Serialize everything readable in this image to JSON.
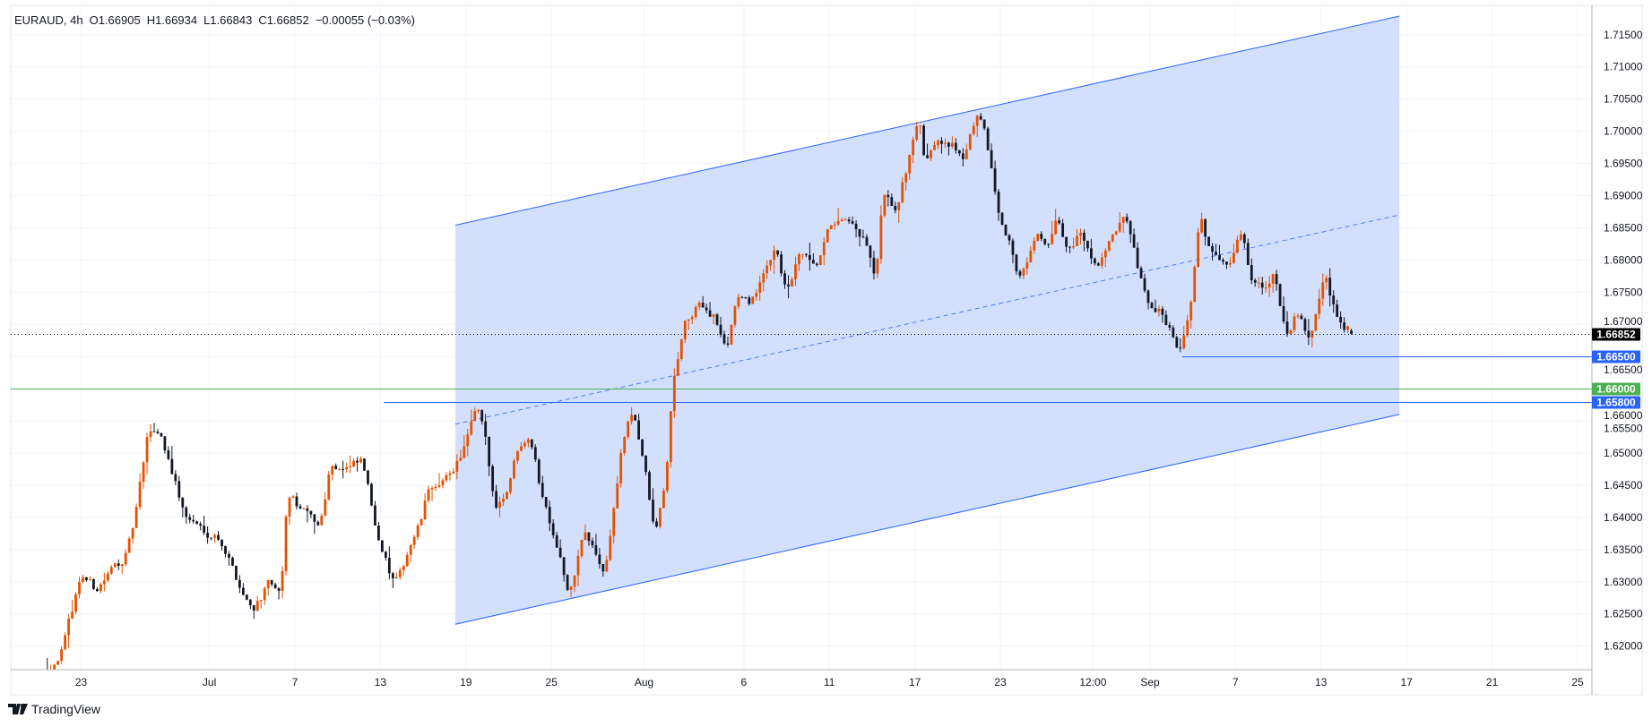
{
  "header": {
    "symbol": "EURAUD, 4h",
    "open": "O1.66905",
    "high": "H1.66934",
    "low": "L1.66843",
    "close": "C1.66852",
    "change": "−0.00055 (−0.03%)"
  },
  "logo": {
    "text": "TradingView"
  },
  "colors": {
    "up": "#e65100",
    "down": "#131722",
    "channel_line": "#2962ff",
    "channel_fill": "#d3e0fd",
    "blue_level": "#2962ff",
    "green_level": "#4caf50",
    "last_price": "#000000",
    "grid": "#f0f3fa"
  },
  "chart_data": {
    "type": "candlestick",
    "symbol": "EURAUD",
    "interval": "4h",
    "last_bar": {
      "open": 1.66905,
      "high": 1.66934,
      "low": 1.66843,
      "close": 1.66852,
      "change": -0.00055,
      "change_pct": -0.03
    },
    "ylim": [
      1.6155,
      1.7195
    ],
    "grid": true,
    "y_ticks": [
      "1.71500",
      "1.71000",
      "1.70500",
      "1.70000",
      "1.69500",
      "1.69000",
      "1.68500",
      "1.68000",
      "1.67500",
      "1.67000",
      "1.66500",
      "1.66000",
      "1.65500",
      "1.65000",
      "1.64500",
      "1.64000",
      "1.63500",
      "1.63000",
      "1.62500",
      "1.62000"
    ],
    "x_ticks": [
      {
        "label": "23",
        "date": "Jun 23 00:00"
      },
      {
        "label": "Jul",
        "date": "Jul 3 00:00"
      },
      {
        "label": "7",
        "date": "Jul 7 00:00"
      },
      {
        "label": "13",
        "date": "Jul 13 00:00"
      },
      {
        "label": "19",
        "date": "Jul 19 00:00"
      },
      {
        "label": "25",
        "date": "Jul 25 00:00"
      },
      {
        "label": "Aug",
        "date": "Jul 31 08:00"
      },
      {
        "label": "6",
        "date": "Aug 7 00:00"
      },
      {
        "label": "11",
        "date": "Aug 11 00:00"
      },
      {
        "label": "17",
        "date": "Aug 17 00:00"
      },
      {
        "label": "23",
        "date": "Aug 23 00:00"
      },
      {
        "label": "12:00",
        "date": "Aug 29 08:00"
      },
      {
        "label": "Sep",
        "date": "Sep 1 00:00"
      },
      {
        "label": "7",
        "date": "Sep 7 00:00"
      },
      {
        "label": "13",
        "date": "Sep 13 00:00"
      },
      {
        "label": "17",
        "date": "Sep 17 00:00"
      },
      {
        "label": "21",
        "date": "Sep 21 00:00"
      },
      {
        "label": "25",
        "date": "Sep 25 00:00"
      }
    ],
    "price_path": [
      [
        "Jun 21 10:00",
        1.6164
      ],
      [
        "Jun 22 04:00",
        1.6198
      ],
      [
        "Jun 23 00:00",
        1.6313
      ],
      [
        "Jun 23 16:00",
        1.6288
      ],
      [
        "Jun 27 04:00",
        1.6346
      ],
      [
        "Jun 27 12:00",
        1.6395
      ],
      [
        "Jun 28 04:00",
        1.6534
      ],
      [
        "Jun 28 16:00",
        1.6534
      ],
      [
        "Jun 29 04:00",
        1.6485
      ],
      [
        "Jun 29 20:00",
        1.6403
      ],
      [
        "Jun 30 12:00",
        1.6386
      ],
      [
        "Jul 3 12:00",
        1.637
      ],
      [
        "Jul 4 12:00",
        1.6288
      ],
      [
        "Jul 5 00:00",
        1.6259
      ],
      [
        "Jul 5 20:00",
        1.6297
      ],
      [
        "Jul 6 08:00",
        1.6272
      ],
      [
        "Jul 6 16:00",
        1.6436
      ],
      [
        "Jul 7 12:00",
        1.6403
      ],
      [
        "Jul 10 04:00",
        1.6386
      ],
      [
        "Jul 10 16:00",
        1.6485
      ],
      [
        "Jul 11 12:00",
        1.6476
      ],
      [
        "Jul 12 04:00",
        1.6485
      ],
      [
        "Jul 12 16:00",
        1.6403
      ],
      [
        "Jul 13 12:00",
        1.6305
      ],
      [
        "Jul 13 20:00",
        1.6297
      ],
      [
        "Jul 14 08:00",
        1.6354
      ],
      [
        "Jul 14 20:00",
        1.6386
      ],
      [
        "Jul 17 08:00",
        1.6452
      ],
      [
        "Jul 17 20:00",
        1.6444
      ],
      [
        "Jul 18 20:00",
        1.6501
      ],
      [
        "Jul 19 12:00",
        1.6566
      ],
      [
        "Jul 19 20:00",
        1.6534
      ],
      [
        "Jul 20 08:00",
        1.6419
      ],
      [
        "Jul 20 20:00",
        1.6436
      ],
      [
        "Jul 21 12:00",
        1.6517
      ],
      [
        "Jul 24 00:00",
        1.6534
      ],
      [
        "Jul 24 12:00",
        1.6444
      ],
      [
        "Jul 25 08:00",
        1.6354
      ],
      [
        "Jul 25 20:00",
        1.6272
      ],
      [
        "Jul 26 12:00",
        1.6378
      ],
      [
        "Jul 27 12:00",
        1.6313
      ],
      [
        "Jul 28 08:00",
        1.6517
      ],
      [
        "Jul 28 20:00",
        1.6566
      ],
      [
        "Jul 31 08:00",
        1.6485
      ],
      [
        "Jul 31 20:00",
        1.637
      ],
      [
        "Aug 1 08:00",
        1.6452
      ],
      [
        "Aug 1 16:00",
        1.6599
      ],
      [
        "Aug 2 04:00",
        1.6697
      ],
      [
        "Aug 3 00:00",
        1.673
      ],
      [
        "Aug 3 16:00",
        1.6713
      ],
      [
        "Aug 4 04:00",
        1.6656
      ],
      [
        "Aug 4 16:00",
        1.6746
      ],
      [
        "Aug 7 04:00",
        1.673
      ],
      [
        "Aug 7 20:00",
        1.6763
      ],
      [
        "Aug 8 12:00",
        1.6828
      ],
      [
        "Aug 9 00:00",
        1.6746
      ],
      [
        "Aug 9 16:00",
        1.6812
      ],
      [
        "Aug 10 08:00",
        1.6779
      ],
      [
        "Aug 11 04:00",
        1.6861
      ],
      [
        "Aug 11 20:00",
        1.6852
      ],
      [
        "Aug 14 16:00",
        1.6828
      ],
      [
        "Aug 15 04:00",
        1.6763
      ],
      [
        "Aug 15 12:00",
        1.6893
      ],
      [
        "Aug 16 04:00",
        1.6877
      ],
      [
        "Aug 16 12:00",
        1.6926
      ],
      [
        "Aug 17 04:00",
        1.7024
      ],
      [
        "Aug 17 12:00",
        1.6942
      ],
      [
        "Aug 18 00:00",
        1.6991
      ],
      [
        "Aug 18 12:00",
        1.6991
      ],
      [
        "Aug 21 08:00",
        1.6959
      ],
      [
        "Aug 21 20:00",
        1.7024
      ],
      [
        "Aug 22 08:00",
        1.6991
      ],
      [
        "Aug 22 20:00",
        1.6885
      ],
      [
        "Aug 23 08:00",
        1.6844
      ],
      [
        "Aug 23 20:00",
        1.6779
      ],
      [
        "Aug 24 08:00",
        1.6795
      ],
      [
        "Aug 24 16:00",
        1.6844
      ],
      [
        "Aug 25 04:00",
        1.6812
      ],
      [
        "Aug 25 16:00",
        1.6861
      ],
      [
        "Aug 28 04:00",
        1.6812
      ],
      [
        "Aug 28 16:00",
        1.6844
      ],
      [
        "Aug 29 12:00",
        1.6795
      ],
      [
        "Aug 30 04:00",
        1.6828
      ],
      [
        "Aug 30 20:00",
        1.6861
      ],
      [
        "Aug 31 08:00",
        1.6795
      ],
      [
        "Aug 31 20:00",
        1.673
      ],
      [
        "Sep 1 16:00",
        1.6713
      ],
      [
        "Sep 4 08:00",
        1.6664
      ],
      [
        "Sep 4 20:00",
        1.6713
      ],
      [
        "Sep 5 08:00",
        1.6861
      ],
      [
        "Sep 5 20:00",
        1.6812
      ],
      [
        "Sep 6 16:00",
        1.6803
      ],
      [
        "Sep 7 08:00",
        1.6844
      ],
      [
        "Sep 7 16:00",
        1.6779
      ],
      [
        "Sep 8 04:00",
        1.6763
      ],
      [
        "Sep 8 20:00",
        1.6779
      ],
      [
        "Sep 11 08:00",
        1.6681
      ],
      [
        "Sep 11 20:00",
        1.6713
      ],
      [
        "Sep 12 12:00",
        1.6673
      ],
      [
        "Sep 13 04:00",
        1.6778
      ],
      [
        "Sep 13 16:00",
        1.6713
      ],
      [
        "Sep 14 04:00",
        1.6697
      ],
      [
        "Sep 14 12:00",
        1.66852
      ]
    ],
    "drawings": {
      "parallel_channel": {
        "start_date": "Jul 18 12:00",
        "end_date": "Sep 16 16:00",
        "upper": [
          1.6854,
          1.7179
        ],
        "lower": [
          1.6234,
          1.656
        ],
        "middle": [
          1.6545,
          1.687
        ],
        "middle_dashed": true
      },
      "horizontal_lines": [
        {
          "price": 1.665,
          "label": "1.66500",
          "start_date": "Sep 4 12:00",
          "color": "#2962ff"
        },
        {
          "price": 1.66,
          "label": "1.66000",
          "start_date": null,
          "color": "#4caf50"
        },
        {
          "price": 1.658,
          "label": "1.65800",
          "start_date": "Jul 13 04:00",
          "color": "#2962ff"
        }
      ],
      "last_price": {
        "price": 1.66852,
        "label": "1.66852",
        "color": "#000000",
        "dotted": true
      }
    }
  }
}
